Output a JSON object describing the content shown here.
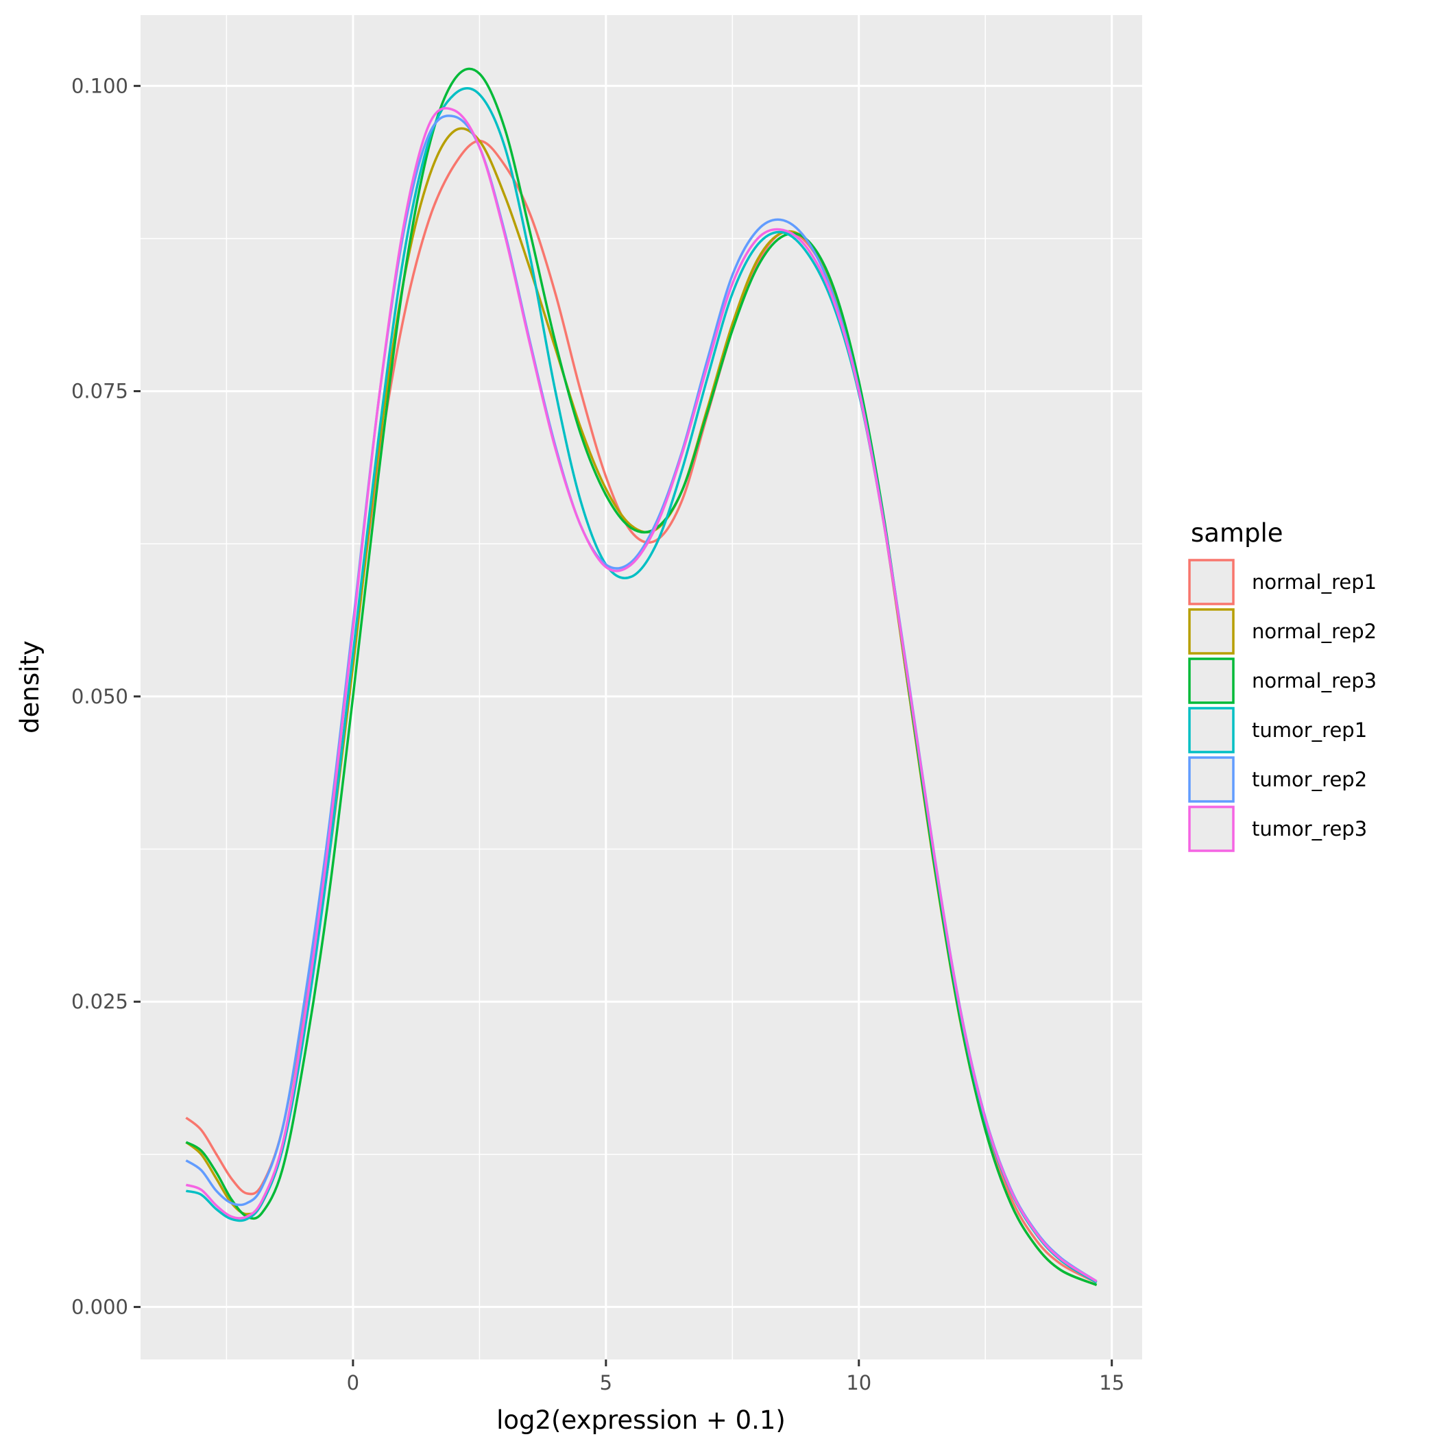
{
  "chart_data": {
    "type": "line",
    "title": "",
    "xlabel": "log2(expression + 0.1)",
    "ylabel": "density",
    "xlim": [
      -4.2,
      15.6
    ],
    "ylim": [
      -0.0043,
      0.1058
    ],
    "x_ticks": [
      0,
      5,
      10,
      15
    ],
    "x_tick_labels": [
      "0",
      "5",
      "10",
      "15"
    ],
    "y_ticks": [
      0.0,
      0.025,
      0.05,
      0.075,
      0.1
    ],
    "y_tick_labels": [
      "0.000",
      "0.025",
      "0.050",
      "0.075",
      "0.100"
    ],
    "grid": true,
    "legend": {
      "title": "sample",
      "position": "right"
    },
    "series": [
      {
        "name": "normal_rep1",
        "color": "#F8766D",
        "x": [
          -3.3,
          -3.0,
          -2.7,
          -2.4,
          -2.1,
          -1.8,
          -1.4,
          -1.0,
          -0.5,
          0.0,
          0.5,
          1.0,
          1.5,
          2.0,
          2.5,
          3.0,
          3.5,
          4.0,
          4.5,
          5.0,
          5.5,
          6.0,
          6.5,
          7.0,
          7.5,
          8.0,
          8.5,
          9.0,
          9.5,
          10.0,
          10.5,
          11.0,
          11.5,
          12.0,
          12.5,
          13.0,
          13.5,
          14.0,
          14.7
        ],
        "values": [
          0.0155,
          0.0145,
          0.0125,
          0.0105,
          0.0093,
          0.01,
          0.0145,
          0.0235,
          0.037,
          0.053,
          0.069,
          0.081,
          0.089,
          0.0935,
          0.0955,
          0.0935,
          0.0895,
          0.083,
          0.075,
          0.068,
          0.0635,
          0.0628,
          0.066,
          0.073,
          0.08,
          0.0855,
          0.088,
          0.087,
          0.083,
          0.0752,
          0.064,
          0.05,
          0.036,
          0.024,
          0.015,
          0.009,
          0.0055,
          0.0035,
          0.002
        ]
      },
      {
        "name": "normal_rep2",
        "color": "#B79F00",
        "x": [
          -3.3,
          -3.0,
          -2.7,
          -2.4,
          -2.1,
          -1.8,
          -1.4,
          -1.0,
          -0.5,
          0.0,
          0.5,
          1.0,
          1.5,
          2.0,
          2.5,
          3.0,
          3.5,
          4.0,
          4.5,
          5.0,
          5.5,
          6.0,
          6.5,
          7.0,
          7.5,
          8.0,
          8.5,
          9.0,
          9.5,
          10.0,
          10.5,
          11.0,
          11.5,
          12.0,
          12.5,
          13.0,
          13.5,
          14.0,
          14.7
        ],
        "values": [
          0.0135,
          0.0125,
          0.0105,
          0.0085,
          0.0076,
          0.0085,
          0.013,
          0.022,
          0.036,
          0.0525,
          0.07,
          0.084,
          0.0925,
          0.0963,
          0.0955,
          0.091,
          0.085,
          0.0785,
          0.072,
          0.067,
          0.064,
          0.0637,
          0.0668,
          0.0735,
          0.0805,
          0.0858,
          0.088,
          0.0872,
          0.0832,
          0.0755,
          0.0642,
          0.05,
          0.0358,
          0.0235,
          0.0145,
          0.0085,
          0.005,
          0.003,
          0.0018
        ]
      },
      {
        "name": "normal_rep3",
        "color": "#00BA38",
        "x": [
          -3.3,
          -3.0,
          -2.7,
          -2.4,
          -2.1,
          -1.8,
          -1.4,
          -1.0,
          -0.5,
          0.0,
          0.5,
          1.0,
          1.5,
          2.0,
          2.5,
          3.0,
          3.5,
          4.0,
          4.5,
          5.0,
          5.5,
          6.0,
          6.5,
          7.0,
          7.5,
          8.0,
          8.5,
          9.0,
          9.5,
          10.0,
          10.5,
          11.0,
          11.5,
          12.0,
          12.5,
          13.0,
          13.5,
          14.0,
          14.7
        ],
        "values": [
          0.0135,
          0.0128,
          0.011,
          0.0088,
          0.0074,
          0.0077,
          0.0112,
          0.0195,
          0.033,
          0.05,
          0.068,
          0.084,
          0.095,
          0.1005,
          0.101,
          0.0965,
          0.088,
          0.079,
          0.0715,
          0.0665,
          0.0638,
          0.0638,
          0.0668,
          0.0732,
          0.08,
          0.0852,
          0.0877,
          0.0873,
          0.0835,
          0.0758,
          0.0645,
          0.0503,
          0.036,
          0.0236,
          0.0145,
          0.0085,
          0.005,
          0.003,
          0.0018
        ]
      },
      {
        "name": "tumor_rep1",
        "color": "#00BFC4",
        "x": [
          -3.3,
          -3.0,
          -2.7,
          -2.4,
          -2.1,
          -1.8,
          -1.4,
          -1.0,
          -0.5,
          0.0,
          0.5,
          1.0,
          1.5,
          2.0,
          2.5,
          3.0,
          3.5,
          4.0,
          4.5,
          5.0,
          5.5,
          6.0,
          6.5,
          7.0,
          7.5,
          8.0,
          8.5,
          9.0,
          9.5,
          10.0,
          10.5,
          11.0,
          11.5,
          12.0,
          12.5,
          13.0,
          13.5,
          14.0,
          14.7
        ],
        "values": [
          0.0095,
          0.0092,
          0.008,
          0.0072,
          0.0072,
          0.0085,
          0.0128,
          0.0215,
          0.036,
          0.0535,
          0.071,
          0.086,
          0.0955,
          0.0993,
          0.0993,
          0.095,
          0.086,
          0.075,
          0.066,
          0.0608,
          0.0598,
          0.0625,
          0.0685,
          0.076,
          0.083,
          0.087,
          0.088,
          0.0862,
          0.082,
          0.0748,
          0.064,
          0.0505,
          0.0365,
          0.0242,
          0.0152,
          0.0095,
          0.006,
          0.0038,
          0.002
        ]
      },
      {
        "name": "tumor_rep2",
        "color": "#619CFF",
        "x": [
          -3.3,
          -3.0,
          -2.7,
          -2.4,
          -2.1,
          -1.8,
          -1.4,
          -1.0,
          -0.5,
          0.0,
          0.5,
          1.0,
          1.5,
          2.0,
          2.5,
          3.0,
          3.5,
          4.0,
          4.5,
          5.0,
          5.5,
          6.0,
          6.5,
          7.0,
          7.5,
          8.0,
          8.5,
          9.0,
          9.5,
          10.0,
          10.5,
          11.0,
          11.5,
          12.0,
          12.5,
          13.0,
          13.5,
          14.0,
          14.7
        ],
        "values": [
          0.012,
          0.0112,
          0.0095,
          0.0085,
          0.0085,
          0.0098,
          0.0145,
          0.024,
          0.0385,
          0.056,
          0.074,
          0.088,
          0.096,
          0.0975,
          0.095,
          0.088,
          0.079,
          0.0705,
          0.064,
          0.0608,
          0.061,
          0.0643,
          0.07,
          0.0775,
          0.0845,
          0.0882,
          0.089,
          0.0872,
          0.0828,
          0.0752,
          0.0642,
          0.0508,
          0.0368,
          0.0245,
          0.0155,
          0.0097,
          0.0062,
          0.004,
          0.0021
        ]
      },
      {
        "name": "tumor_rep3",
        "color": "#F564E3",
        "x": [
          -3.3,
          -3.0,
          -2.7,
          -2.4,
          -2.1,
          -1.8,
          -1.4,
          -1.0,
          -0.5,
          0.0,
          0.5,
          1.0,
          1.5,
          2.0,
          2.5,
          3.0,
          3.5,
          4.0,
          4.5,
          5.0,
          5.5,
          6.0,
          6.5,
          7.0,
          7.5,
          8.0,
          8.5,
          9.0,
          9.5,
          10.0,
          10.5,
          11.0,
          11.5,
          12.0,
          12.5,
          13.0,
          13.5,
          14.0,
          14.7
        ],
        "values": [
          0.01,
          0.0096,
          0.0083,
          0.0074,
          0.0074,
          0.0087,
          0.0132,
          0.0225,
          0.0375,
          0.0555,
          0.074,
          0.0885,
          0.0968,
          0.098,
          0.095,
          0.0878,
          0.0788,
          0.0703,
          0.064,
          0.0606,
          0.0608,
          0.064,
          0.0698,
          0.077,
          0.0838,
          0.0875,
          0.0882,
          0.0866,
          0.0824,
          0.075,
          0.064,
          0.0506,
          0.0367,
          0.0244,
          0.0154,
          0.0096,
          0.0061,
          0.0039,
          0.0021
        ]
      }
    ]
  }
}
